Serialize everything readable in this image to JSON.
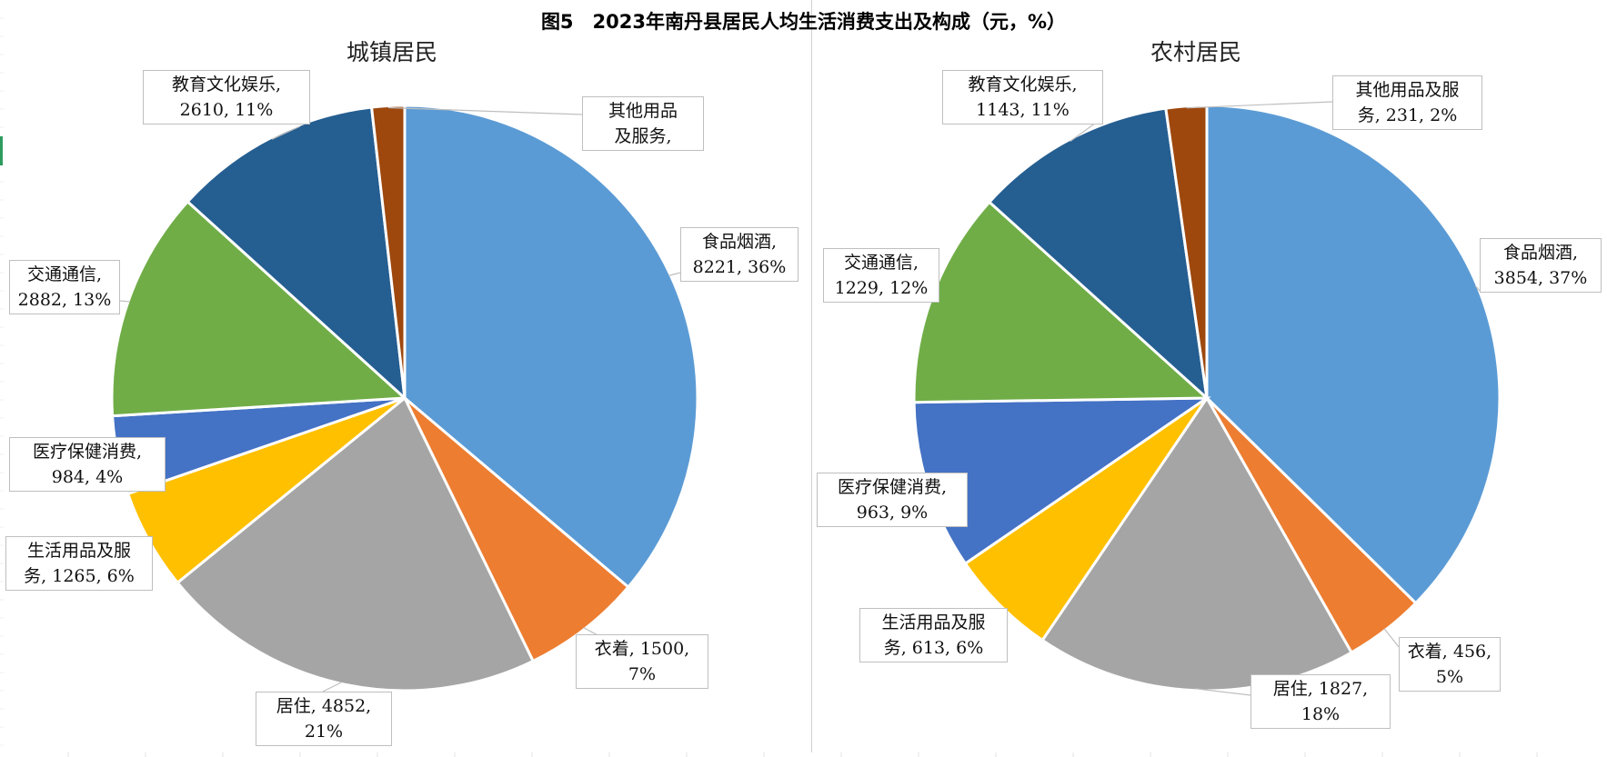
{
  "title": "图5　2023年南丹县居民人均生活消费支出及构成（元，%）",
  "colors": {
    "食品烟酒": "#5b9bd5",
    "衣着": "#ed7d31",
    "居住": "#a5a5a5",
    "生活用品及服务": "#ffc000",
    "医疗保健消费": "#4472c4",
    "交通通信": "#70ad47",
    "教育文化娱乐": "#255e91",
    "其他用品及服务": "#9e480e"
  },
  "chart_data": [
    {
      "type": "pie",
      "title": "城镇居民",
      "categories": [
        "食品烟酒",
        "衣着",
        "居住",
        "生活用品及服务",
        "医疗保健消费",
        "交通通信",
        "教育文化娱乐",
        "其他用品及服务"
      ],
      "values": [
        8221,
        1500,
        4852,
        1265,
        984,
        2882,
        2610,
        410
      ],
      "percents": [
        "36%",
        "7%",
        "21%",
        "6%",
        "4%",
        "13%",
        "11%",
        ""
      ],
      "labels": [
        "食品烟酒,\n8221, 36%",
        "衣着, 1500,\n7%",
        "居住, 4852,\n21%",
        "生活用品及服\n务, 1265, 6%",
        "医疗保健消费,\n984, 4%",
        "交通通信,\n2882, 13%",
        "教育文化娱乐,\n2610, 11%",
        "其他用品\n及服务,"
      ]
    },
    {
      "type": "pie",
      "title": "农村居民",
      "categories": [
        "食品烟酒",
        "衣着",
        "居住",
        "生活用品及服务",
        "医疗保健消费",
        "交通通信",
        "教育文化娱乐",
        "其他用品及服务"
      ],
      "values": [
        3854,
        456,
        1827,
        613,
        963,
        1229,
        1143,
        231
      ],
      "percents": [
        "37%",
        "5%",
        "18%",
        "6%",
        "9%",
        "12%",
        "11%",
        "2%"
      ],
      "labels": [
        "食品烟酒,\n3854, 37%",
        "衣着, 456,\n5%",
        "居住, 1827,\n18%",
        "生活用品及服\n务, 613, 6%",
        "医疗保健消费,\n963, 9%",
        "交通通信,\n1229, 12%",
        "教育文化娱乐,\n1143, 11%",
        "其他用品及服\n务, 231, 2%"
      ]
    }
  ]
}
